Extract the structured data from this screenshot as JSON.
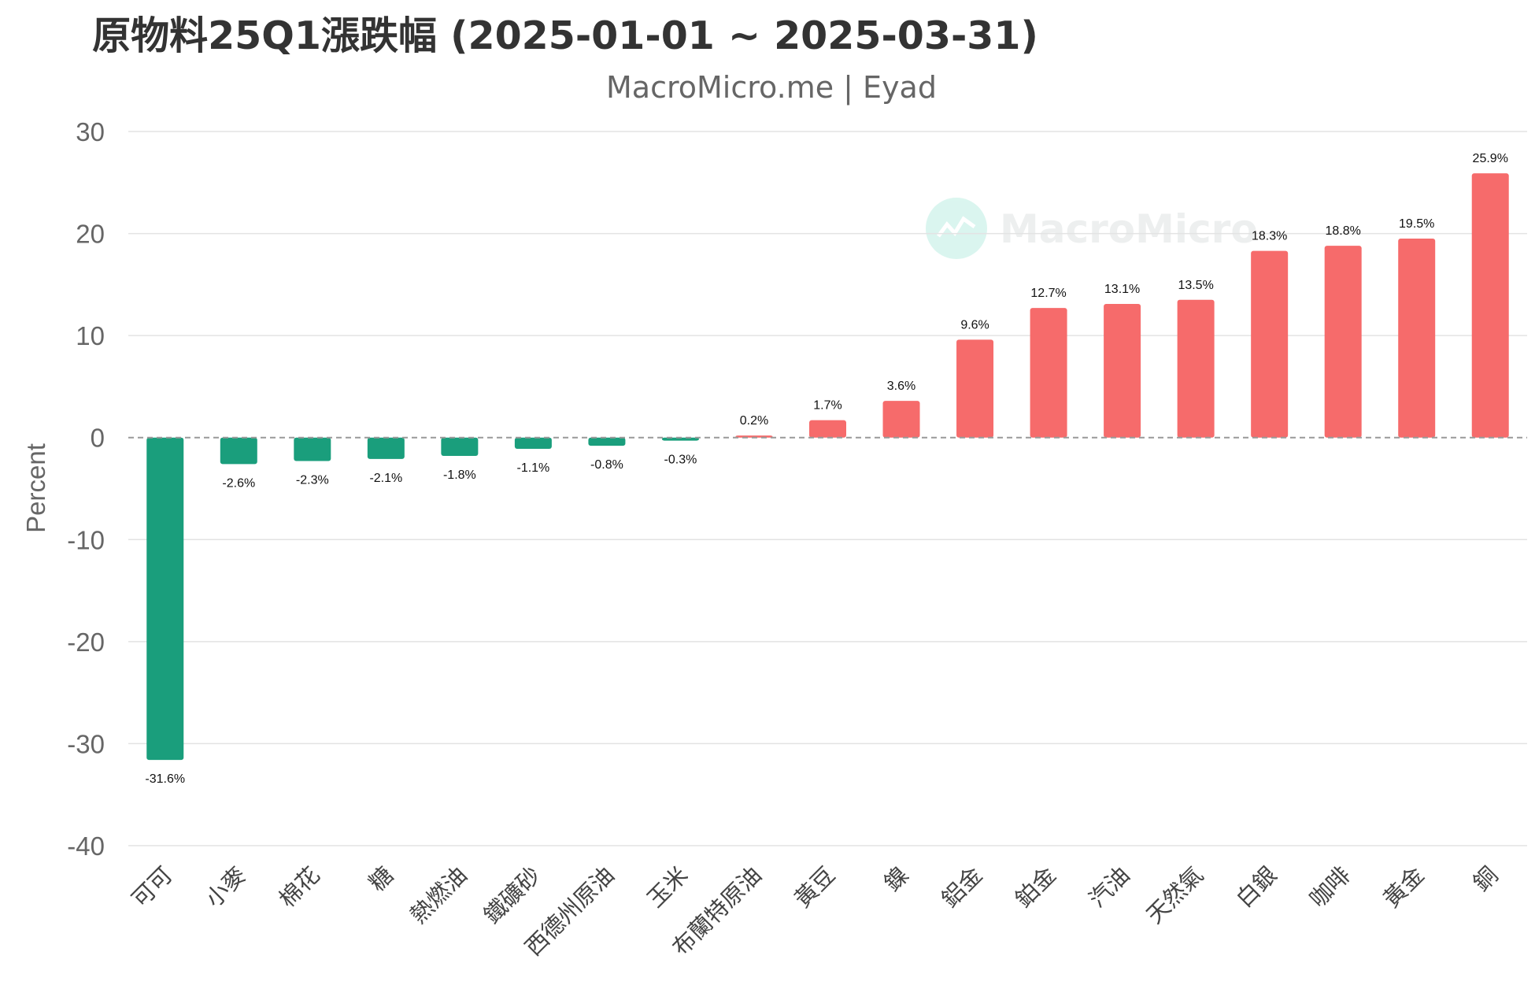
{
  "chart_data": {
    "type": "bar",
    "title": "原物料25Q1漲跌幅 (2025-01-01 ~ 2025-03-31)",
    "subtitle": "MacroMicro.me | Eyad",
    "ylabel": "Percent",
    "ylim": [
      -40,
      30
    ],
    "yticks": [
      30,
      20,
      10,
      0,
      -10,
      -20,
      -30,
      -40
    ],
    "grid": true,
    "categories": [
      "可可",
      "小麥",
      "棉花",
      "糖",
      "熱燃油",
      "鐵礦砂",
      "西德州原油",
      "玉米",
      "布蘭特原油",
      "黃豆",
      "鎳",
      "鋁金",
      "鉑金",
      "汽油",
      "天然氣",
      "白銀",
      "咖啡",
      "黃金",
      "銅"
    ],
    "values": [
      -31.6,
      -2.6,
      -2.3,
      -2.1,
      -1.8,
      -1.1,
      -0.8,
      -0.3,
      0.2,
      1.7,
      3.6,
      9.6,
      12.7,
      13.1,
      13.5,
      18.3,
      18.8,
      19.5,
      25.9
    ],
    "data_labels": [
      "-31.6%",
      "-2.6%",
      "-2.3%",
      "-2.1%",
      "-1.8%",
      "-1.1%",
      "-0.8%",
      "-0.3%",
      "0.2%",
      "1.7%",
      "3.6%",
      "9.6%",
      "12.7%",
      "13.1%",
      "13.5%",
      "18.3%",
      "18.8%",
      "19.5%",
      "25.9%"
    ],
    "colors": {
      "negative": "#1a9e7c",
      "positive": "#f66b6b"
    }
  },
  "watermark": {
    "text": "MacroMicro",
    "icon": "macromicro-logo-icon"
  }
}
